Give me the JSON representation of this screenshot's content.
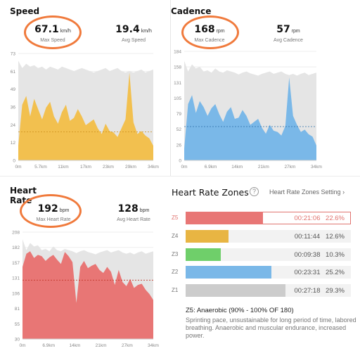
{
  "speed": {
    "title": "Speed",
    "max_value": "67.1",
    "max_unit": "km/h",
    "max_label": "Max Speed",
    "avg_value": "19.4",
    "avg_unit": "km/h",
    "avg_label": "Avg Speed",
    "fill_color": "#f2c04f"
  },
  "cadence": {
    "title": "Cadence",
    "max_value": "168",
    "max_unit": "rpm",
    "max_label": "Max Cadence",
    "avg_value": "57",
    "avg_unit": "rpm",
    "avg_label": "Avg Cadence",
    "fill_color": "#7ab8e8"
  },
  "heart_rate": {
    "title": "Heart Rate",
    "max_value": "192",
    "max_unit": "bpm",
    "max_label": "Max Heart Rate",
    "avg_value": "128",
    "avg_unit": "bpm",
    "avg_label": "Avg Heart Rate",
    "fill_color": "#e87675"
  },
  "zones": {
    "title": "Heart Rate Zones",
    "help_glyph": "?",
    "settings_label": "Heart Rate Zones Setting",
    "settings_chevron": "›",
    "items": [
      {
        "label": "Z5",
        "time": "00:21:06",
        "percent": "22.6%",
        "fraction": 0.226,
        "color": "#e87675",
        "active": true
      },
      {
        "label": "Z4",
        "time": "00:11:44",
        "percent": "12.6%",
        "fraction": 0.126,
        "color": "#e8b543",
        "active": false
      },
      {
        "label": "Z3",
        "time": "00:09:38",
        "percent": "10.3%",
        "fraction": 0.103,
        "color": "#6fcf6a",
        "active": false
      },
      {
        "label": "Z2",
        "time": "00:23:31",
        "percent": "25.2%",
        "fraction": 0.252,
        "color": "#7ab8e8",
        "active": false
      },
      {
        "label": "Z1",
        "time": "00:27:18",
        "percent": "29.3%",
        "fraction": 0.293,
        "color": "#cccccc",
        "active": false
      }
    ],
    "selected_title": "Z5: Anaerobic (90% - 100% OF 180)",
    "selected_desc": "Sprinting pace, unsustainable for long period of time, labored breathing. Anaerobic and muscular endurance, increased power."
  },
  "chart_data": [
    {
      "type": "area",
      "title": "Speed",
      "x": [
        0,
        1,
        2,
        3,
        4,
        5,
        6,
        7,
        8,
        9,
        10,
        11,
        12,
        13,
        14,
        15,
        16,
        17,
        18,
        19,
        20,
        21,
        22,
        23,
        24,
        25,
        26,
        27,
        28,
        29,
        30,
        31,
        32,
        33,
        34
      ],
      "x_ticks": [
        "0m",
        "5.7km",
        "11km",
        "17km",
        "23km",
        "29km",
        "34km"
      ],
      "y_ticks": [
        "0",
        "12",
        "24",
        "36",
        "49",
        "61",
        "73"
      ],
      "ylim": [
        0,
        73
      ],
      "avg_line": 19.4,
      "elevation_band": [
        68,
        63,
        66,
        64,
        65,
        63,
        64,
        62,
        64,
        63,
        62,
        64,
        63,
        62,
        61,
        62,
        63,
        62,
        61,
        60,
        61,
        62,
        63,
        61,
        62,
        63,
        61,
        60,
        61,
        60,
        61,
        62,
        60,
        61,
        62
      ],
      "series": [
        {
          "values": [
            10,
            38,
            44,
            30,
            42,
            35,
            28,
            36,
            40,
            30,
            25,
            33,
            38,
            27,
            29,
            35,
            30,
            24,
            26,
            28,
            22,
            18,
            25,
            20,
            19,
            16,
            22,
            28,
            60,
            26,
            18,
            20,
            17,
            15,
            10
          ]
        }
      ]
    },
    {
      "type": "area",
      "title": "Cadence",
      "x": [
        0,
        1,
        2,
        3,
        4,
        5,
        6,
        7,
        8,
        9,
        10,
        11,
        12,
        13,
        14,
        15,
        16,
        17,
        18,
        19,
        20,
        21,
        22,
        23,
        24,
        25,
        26,
        27,
        28,
        29,
        30,
        31,
        32,
        33,
        34
      ],
      "x_ticks": [
        "0m",
        "6.9km",
        "14km",
        "21km",
        "27km",
        "34km"
      ],
      "y_ticks": [
        "0",
        "26",
        "52",
        "79",
        "105",
        "131",
        "158",
        "184"
      ],
      "ylim": [
        0,
        184
      ],
      "avg_line": 57,
      "elevation_band": [
        168,
        150,
        162,
        155,
        158,
        150,
        152,
        148,
        155,
        150,
        148,
        152,
        150,
        148,
        145,
        148,
        150,
        147,
        145,
        143,
        146,
        148,
        150,
        146,
        148,
        150,
        146,
        144,
        146,
        143,
        146,
        148,
        144,
        146,
        148
      ],
      "series": [
        {
          "values": [
            20,
            95,
            110,
            80,
            100,
            90,
            75,
            88,
            95,
            78,
            65,
            82,
            90,
            70,
            72,
            85,
            75,
            60,
            65,
            70,
            55,
            45,
            60,
            50,
            48,
            42,
            58,
            140,
            75,
            60,
            48,
            52,
            44,
            40,
            25
          ]
        }
      ]
    },
    {
      "type": "area",
      "title": "Heart Rate",
      "x": [
        0,
        1,
        2,
        3,
        4,
        5,
        6,
        7,
        8,
        9,
        10,
        11,
        12,
        13,
        14,
        15,
        16,
        17,
        18,
        19,
        20,
        21,
        22,
        23,
        24,
        25,
        26,
        27,
        28,
        29,
        30,
        31,
        32,
        33,
        34
      ],
      "x_ticks": [
        "0m",
        "6.9km",
        "14km",
        "21km",
        "27km",
        "34km"
      ],
      "y_ticks": [
        "30",
        "55",
        "81",
        "106",
        "131",
        "157",
        "182",
        "208"
      ],
      "ylim": [
        30,
        208
      ],
      "avg_line": 128,
      "elevation_band": [
        196,
        178,
        190,
        184,
        186,
        178,
        180,
        176,
        184,
        178,
        176,
        180,
        178,
        176,
        173,
        176,
        178,
        175,
        173,
        171,
        174,
        176,
        178,
        174,
        176,
        178,
        174,
        172,
        174,
        171,
        174,
        176,
        172,
        174,
        176
      ],
      "series": [
        {
          "values": [
            150,
            172,
            176,
            165,
            170,
            168,
            160,
            166,
            170,
            162,
            155,
            175,
            168,
            158,
            90,
            150,
            160,
            148,
            152,
            155,
            145,
            140,
            150,
            142,
            120,
            145,
            125,
            118,
            130,
            115,
            120,
            122,
            112,
            105,
            95
          ]
        }
      ]
    }
  ]
}
